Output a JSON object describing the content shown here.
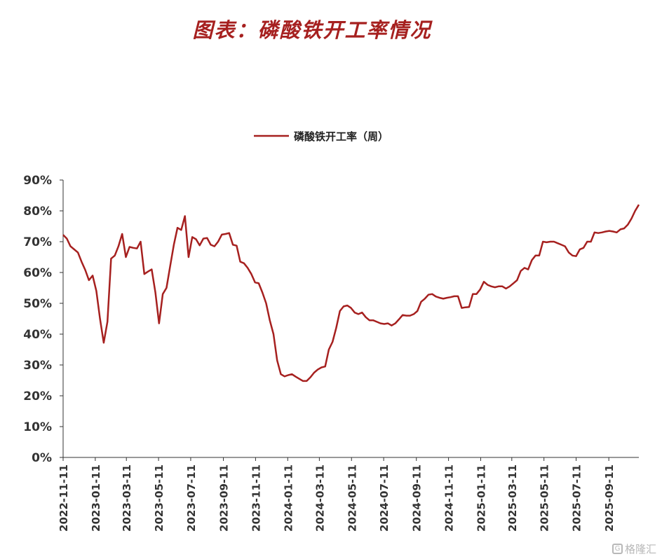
{
  "page": {
    "title": "图表：磷酸铁开工率情况",
    "watermark": "格隆汇"
  },
  "colors": {
    "title": "#a6201f",
    "series": "#a6201f",
    "axis": "#333333"
  },
  "chart_data": {
    "type": "line",
    "title": "",
    "xlabel": "",
    "ylabel": "",
    "ylim": [
      0,
      90
    ],
    "y_ticks": [
      "0%",
      "10%",
      "20%",
      "30%",
      "40%",
      "50%",
      "60%",
      "70%",
      "80%",
      "90%"
    ],
    "x_ticks": [
      "2022-11-11",
      "2023-01-11",
      "2023-03-11",
      "2023-05-11",
      "2023-07-11",
      "2023-09-11",
      "2023-11-11",
      "2024-01-11",
      "2024-03-11",
      "2024-05-11",
      "2024-07-11",
      "2024-09-11",
      "2024-11-11",
      "2025-01-11",
      "2025-03-11",
      "2025-05-11",
      "2025-07-11",
      "2025-09-11"
    ],
    "legend": {
      "position": "top-center",
      "label": "磷酸铁开工率（周）"
    },
    "grid": false,
    "series": [
      {
        "name": "磷酸铁开工率（周）",
        "unit": "%",
        "points": [
          [
            "2022-11-11",
            72.2
          ],
          [
            "2022-11-18",
            71.0
          ],
          [
            "2022-11-25",
            68.5
          ],
          [
            "2022-12-02",
            67.5
          ],
          [
            "2022-12-09",
            66.5
          ],
          [
            "2022-12-16",
            63.5
          ],
          [
            "2022-12-23",
            60.8
          ],
          [
            "2022-12-30",
            57.5
          ],
          [
            "2023-01-06",
            59.0
          ],
          [
            "2023-01-13",
            54.0
          ],
          [
            "2023-01-20",
            45.0
          ],
          [
            "2023-01-27",
            37.2
          ],
          [
            "2023-02-03",
            44.0
          ],
          [
            "2023-02-10",
            64.5
          ],
          [
            "2023-02-17",
            65.5
          ],
          [
            "2023-02-24",
            68.5
          ],
          [
            "2023-03-03",
            72.5
          ],
          [
            "2023-03-10",
            65.0
          ],
          [
            "2023-03-17",
            68.3
          ],
          [
            "2023-03-24",
            68.0
          ],
          [
            "2023-03-31",
            67.8
          ],
          [
            "2023-04-07",
            70.0
          ],
          [
            "2023-04-14",
            59.5
          ],
          [
            "2023-04-21",
            60.3
          ],
          [
            "2023-04-28",
            61.0
          ],
          [
            "2023-05-05",
            53.5
          ],
          [
            "2023-05-12",
            43.5
          ],
          [
            "2023-05-19",
            53.0
          ],
          [
            "2023-05-26",
            55.0
          ],
          [
            "2023-06-02",
            62.0
          ],
          [
            "2023-06-09",
            69.0
          ],
          [
            "2023-06-16",
            74.5
          ],
          [
            "2023-06-23",
            73.8
          ],
          [
            "2023-06-30",
            78.3
          ],
          [
            "2023-07-07",
            65.0
          ],
          [
            "2023-07-14",
            71.5
          ],
          [
            "2023-07-21",
            70.8
          ],
          [
            "2023-07-28",
            68.8
          ],
          [
            "2023-08-04",
            71.0
          ],
          [
            "2023-08-11",
            71.2
          ],
          [
            "2023-08-18",
            69.0
          ],
          [
            "2023-08-25",
            68.5
          ],
          [
            "2023-09-01",
            70.0
          ],
          [
            "2023-09-08",
            72.3
          ],
          [
            "2023-09-15",
            72.5
          ],
          [
            "2023-09-22",
            72.8
          ],
          [
            "2023-09-29",
            69.0
          ],
          [
            "2023-10-06",
            68.7
          ],
          [
            "2023-10-13",
            63.5
          ],
          [
            "2023-10-20",
            63.0
          ],
          [
            "2023-10-27",
            61.5
          ],
          [
            "2023-11-03",
            59.5
          ],
          [
            "2023-11-10",
            56.8
          ],
          [
            "2023-11-17",
            56.5
          ],
          [
            "2023-11-24",
            53.5
          ],
          [
            "2023-12-01",
            50.0
          ],
          [
            "2023-12-08",
            44.5
          ],
          [
            "2023-12-15",
            40.0
          ],
          [
            "2023-12-22",
            31.5
          ],
          [
            "2023-12-29",
            27.0
          ],
          [
            "2024-01-05",
            26.3
          ],
          [
            "2024-01-12",
            26.7
          ],
          [
            "2024-01-19",
            27.0
          ],
          [
            "2024-01-26",
            26.2
          ],
          [
            "2024-02-02",
            25.5
          ],
          [
            "2024-02-09",
            24.8
          ],
          [
            "2024-02-16",
            24.8
          ],
          [
            "2024-02-23",
            26.0
          ],
          [
            "2024-03-01",
            27.5
          ],
          [
            "2024-03-08",
            28.5
          ],
          [
            "2024-03-15",
            29.2
          ],
          [
            "2024-03-22",
            29.5
          ],
          [
            "2024-03-29",
            35.0
          ],
          [
            "2024-04-05",
            37.5
          ],
          [
            "2024-04-12",
            42.0
          ],
          [
            "2024-04-19",
            47.5
          ],
          [
            "2024-04-26",
            49.0
          ],
          [
            "2024-05-03",
            49.3
          ],
          [
            "2024-05-10",
            48.5
          ],
          [
            "2024-05-17",
            47.0
          ],
          [
            "2024-05-24",
            46.5
          ],
          [
            "2024-05-31",
            47.0
          ],
          [
            "2024-06-07",
            45.5
          ],
          [
            "2024-06-14",
            44.5
          ],
          [
            "2024-06-21",
            44.5
          ],
          [
            "2024-06-28",
            44.0
          ],
          [
            "2024-07-05",
            43.5
          ],
          [
            "2024-07-12",
            43.3
          ],
          [
            "2024-07-19",
            43.5
          ],
          [
            "2024-07-26",
            42.8
          ],
          [
            "2024-08-02",
            43.5
          ],
          [
            "2024-08-09",
            44.8
          ],
          [
            "2024-08-16",
            46.2
          ],
          [
            "2024-08-23",
            46.0
          ],
          [
            "2024-08-30",
            46.0
          ],
          [
            "2024-09-06",
            46.5
          ],
          [
            "2024-09-13",
            47.5
          ],
          [
            "2024-09-20",
            50.5
          ],
          [
            "2024-09-27",
            51.5
          ],
          [
            "2024-10-04",
            52.8
          ],
          [
            "2024-10-11",
            53.0
          ],
          [
            "2024-10-18",
            52.2
          ],
          [
            "2024-10-25",
            51.8
          ],
          [
            "2024-11-01",
            51.5
          ],
          [
            "2024-11-08",
            51.8
          ],
          [
            "2024-11-15",
            52.0
          ],
          [
            "2024-11-22",
            52.3
          ],
          [
            "2024-11-29",
            52.3
          ],
          [
            "2024-12-06",
            48.5
          ],
          [
            "2024-12-13",
            48.7
          ],
          [
            "2024-12-20",
            48.8
          ],
          [
            "2024-12-27",
            53.0
          ],
          [
            "2025-01-03",
            53.0
          ],
          [
            "2025-01-10",
            54.5
          ],
          [
            "2025-01-17",
            57.0
          ],
          [
            "2025-01-24",
            56.0
          ],
          [
            "2025-01-31",
            55.5
          ],
          [
            "2025-02-07",
            55.2
          ],
          [
            "2025-02-14",
            55.5
          ],
          [
            "2025-02-21",
            55.5
          ],
          [
            "2025-02-28",
            54.8
          ],
          [
            "2025-03-07",
            55.5
          ],
          [
            "2025-03-14",
            56.5
          ],
          [
            "2025-03-21",
            57.5
          ],
          [
            "2025-03-28",
            60.5
          ],
          [
            "2025-04-04",
            61.5
          ],
          [
            "2025-04-11",
            61.0
          ],
          [
            "2025-04-18",
            64.0
          ],
          [
            "2025-04-25",
            65.5
          ],
          [
            "2025-05-02",
            65.5
          ],
          [
            "2025-05-09",
            70.0
          ],
          [
            "2025-05-16",
            69.8
          ],
          [
            "2025-05-23",
            70.0
          ],
          [
            "2025-05-30",
            70.0
          ],
          [
            "2025-06-06",
            69.5
          ],
          [
            "2025-06-13",
            69.0
          ],
          [
            "2025-06-20",
            68.5
          ],
          [
            "2025-06-27",
            66.5
          ],
          [
            "2025-07-04",
            65.5
          ],
          [
            "2025-07-11",
            65.3
          ],
          [
            "2025-07-18",
            67.5
          ],
          [
            "2025-07-25",
            68.0
          ],
          [
            "2025-08-01",
            70.0
          ],
          [
            "2025-08-08",
            70.0
          ],
          [
            "2025-08-15",
            73.0
          ],
          [
            "2025-08-22",
            72.8
          ],
          [
            "2025-08-29",
            73.0
          ],
          [
            "2025-09-05",
            73.3
          ],
          [
            "2025-09-12",
            73.5
          ],
          [
            "2025-09-19",
            73.3
          ],
          [
            "2025-09-26",
            73.0
          ],
          [
            "2025-10-03",
            74.0
          ],
          [
            "2025-10-10",
            74.3
          ],
          [
            "2025-10-17",
            75.5
          ],
          [
            "2025-10-24",
            77.5
          ],
          [
            "2025-10-31",
            80.0
          ],
          [
            "2025-11-07",
            82.0
          ]
        ]
      }
    ]
  }
}
